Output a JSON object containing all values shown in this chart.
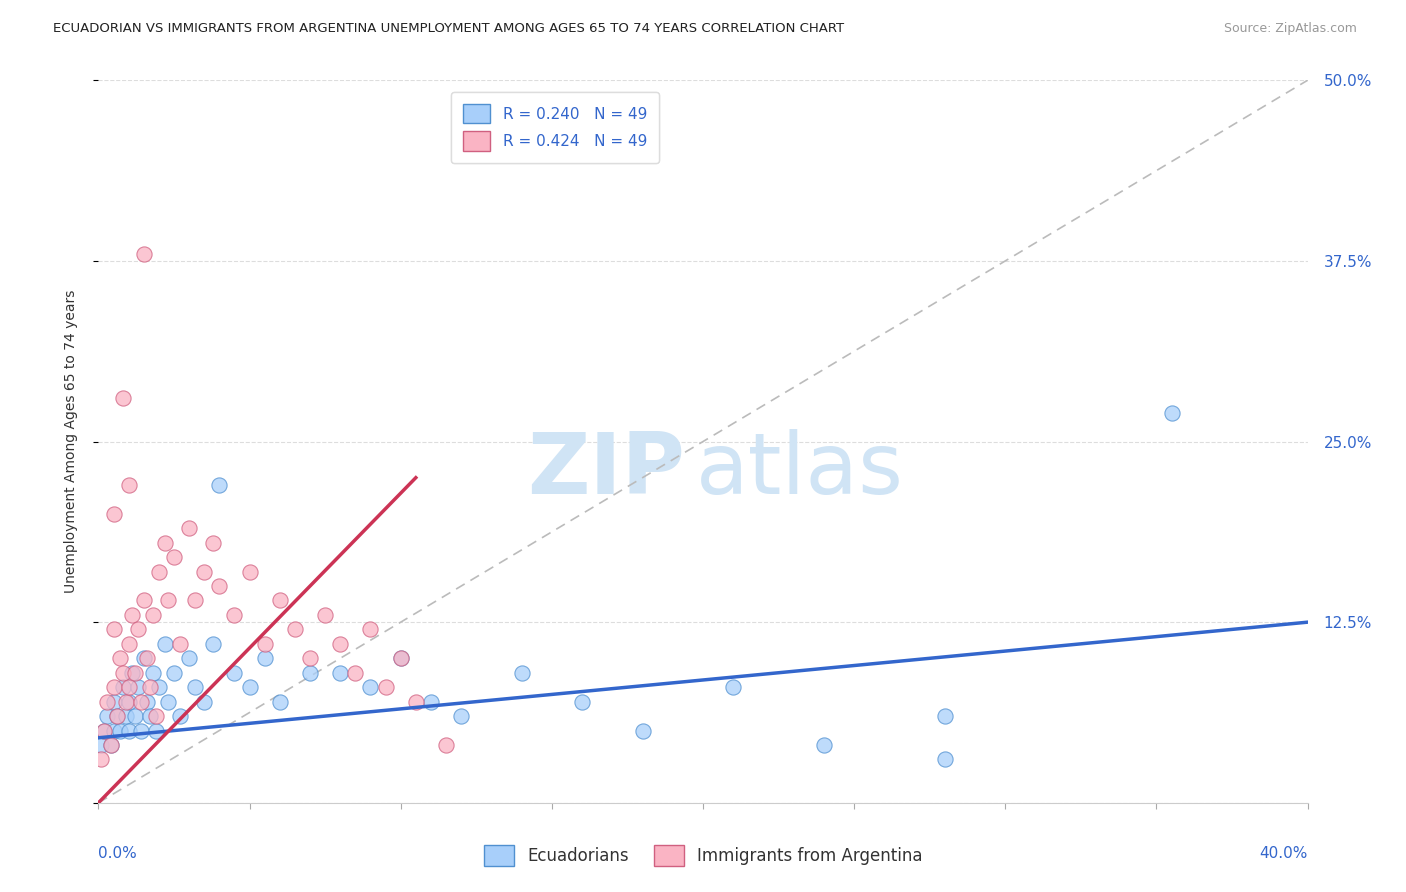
{
  "title": "ECUADORIAN VS IMMIGRANTS FROM ARGENTINA UNEMPLOYMENT AMONG AGES 65 TO 74 YEARS CORRELATION CHART",
  "source": "Source: ZipAtlas.com",
  "ylabel": "Unemployment Among Ages 65 to 74 years",
  "legend_blue_label": "R = 0.240   N = 49",
  "legend_pink_label": "R = 0.424   N = 49",
  "legend_bottom_blue": "Ecuadorians",
  "legend_bottom_pink": "Immigrants from Argentina",
  "blue_fill": "#A8CFFA",
  "pink_fill": "#FAB4C4",
  "blue_edge": "#5090D0",
  "pink_edge": "#D06080",
  "blue_line_color": "#3366CC",
  "pink_line_color": "#CC3355",
  "diag_color": "#BBBBBB",
  "watermark_color": "#D0E4F5",
  "xmin": 0.0,
  "xmax": 0.4,
  "ymin": 0.0,
  "ymax": 0.5,
  "right_yticks": [
    0.0,
    0.125,
    0.25,
    0.375,
    0.5
  ],
  "right_yticklabels": [
    "",
    "12.5%",
    "25.0%",
    "37.5%",
    "50.0%"
  ],
  "title_fontsize": 9.5,
  "source_fontsize": 9,
  "axis_label_fontsize": 10,
  "tick_fontsize": 11,
  "legend_fontsize": 11,
  "blue_trend_x": [
    0.0,
    0.4
  ],
  "blue_trend_y": [
    0.045,
    0.125
  ],
  "pink_trend_x": [
    0.0,
    0.105
  ],
  "pink_trend_y": [
    0.0,
    0.225
  ],
  "blue_scatter_x": [
    0.001,
    0.002,
    0.003,
    0.004,
    0.005,
    0.005,
    0.006,
    0.007,
    0.008,
    0.009,
    0.01,
    0.01,
    0.011,
    0.012,
    0.013,
    0.014,
    0.015,
    0.016,
    0.017,
    0.018,
    0.019,
    0.02,
    0.022,
    0.023,
    0.025,
    0.027,
    0.03,
    0.032,
    0.035,
    0.038,
    0.04,
    0.045,
    0.05,
    0.055,
    0.06,
    0.07,
    0.08,
    0.09,
    0.1,
    0.11,
    0.12,
    0.14,
    0.16,
    0.18,
    0.21,
    0.24,
    0.28,
    0.355,
    0.28
  ],
  "blue_scatter_y": [
    0.04,
    0.05,
    0.06,
    0.04,
    0.07,
    0.05,
    0.06,
    0.05,
    0.08,
    0.06,
    0.07,
    0.05,
    0.09,
    0.06,
    0.08,
    0.05,
    0.1,
    0.07,
    0.06,
    0.09,
    0.05,
    0.08,
    0.11,
    0.07,
    0.09,
    0.06,
    0.1,
    0.08,
    0.07,
    0.11,
    0.22,
    0.09,
    0.08,
    0.1,
    0.07,
    0.09,
    0.09,
    0.08,
    0.1,
    0.07,
    0.06,
    0.09,
    0.07,
    0.05,
    0.08,
    0.04,
    0.06,
    0.27,
    0.03
  ],
  "pink_scatter_x": [
    0.001,
    0.002,
    0.003,
    0.004,
    0.005,
    0.005,
    0.006,
    0.007,
    0.008,
    0.009,
    0.01,
    0.01,
    0.011,
    0.012,
    0.013,
    0.014,
    0.015,
    0.016,
    0.017,
    0.018,
    0.019,
    0.02,
    0.022,
    0.023,
    0.025,
    0.027,
    0.03,
    0.032,
    0.035,
    0.038,
    0.04,
    0.045,
    0.05,
    0.055,
    0.06,
    0.065,
    0.07,
    0.075,
    0.08,
    0.085,
    0.09,
    0.095,
    0.1,
    0.105,
    0.115,
    0.005,
    0.008,
    0.01,
    0.015
  ],
  "pink_scatter_y": [
    0.03,
    0.05,
    0.07,
    0.04,
    0.08,
    0.12,
    0.06,
    0.1,
    0.09,
    0.07,
    0.11,
    0.08,
    0.13,
    0.09,
    0.12,
    0.07,
    0.14,
    0.1,
    0.08,
    0.13,
    0.06,
    0.16,
    0.18,
    0.14,
    0.17,
    0.11,
    0.19,
    0.14,
    0.16,
    0.18,
    0.15,
    0.13,
    0.16,
    0.11,
    0.14,
    0.12,
    0.1,
    0.13,
    0.11,
    0.09,
    0.12,
    0.08,
    0.1,
    0.07,
    0.04,
    0.2,
    0.28,
    0.22,
    0.38
  ]
}
